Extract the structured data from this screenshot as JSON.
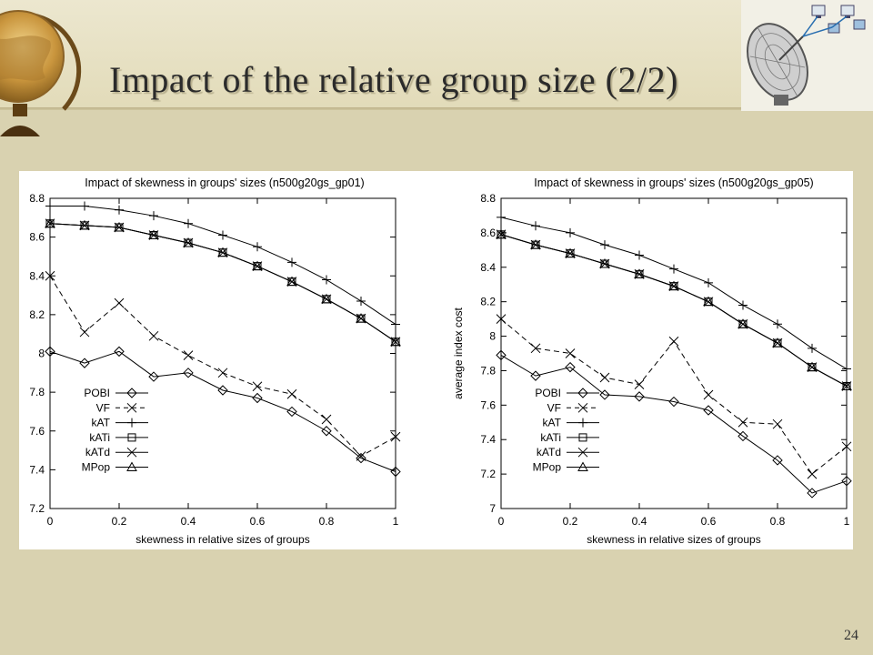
{
  "slide": {
    "title": "Impact of the relative group size (2/2)",
    "page_number": "24",
    "colors": {
      "background": "#d9d2b0",
      "header": "#e6e0c4",
      "chart_background": "#ffffff",
      "ink": "#000000"
    },
    "icons": [
      "globe-icon",
      "satellite-dish-icon",
      "computer-icon"
    ]
  },
  "chart_data": [
    {
      "type": "line",
      "title": "Impact of skewness in groups' sizes (n500g20gs_gp01)",
      "xlabel": "skewness in relative sizes of groups",
      "ylabel": "",
      "x": [
        0,
        0.1,
        0.2,
        0.3,
        0.4,
        0.5,
        0.6,
        0.7,
        0.8,
        0.9,
        1
      ],
      "xlim": [
        0,
        1
      ],
      "ylim": [
        7.2,
        8.8
      ],
      "xticks": [
        "0",
        "0.2",
        "0.4",
        "0.6",
        "0.8",
        "1"
      ],
      "xtick_values": [
        0,
        0.2,
        0.4,
        0.6,
        0.8,
        1
      ],
      "yticks": [
        "7.2",
        "7.4",
        "7.6",
        "7.8",
        "8",
        "8.2",
        "8.4",
        "8.6",
        "8.8"
      ],
      "ytick_values": [
        7.2,
        7.4,
        7.6,
        7.8,
        8,
        8.2,
        8.4,
        8.6,
        8.8
      ],
      "grid": false,
      "legend_position": "bottom-left",
      "series": [
        {
          "name": "POBI",
          "marker": "diamond",
          "dash": "solid",
          "values": [
            8.01,
            7.95,
            8.01,
            7.88,
            7.9,
            7.81,
            7.77,
            7.7,
            7.6,
            7.46,
            7.39
          ]
        },
        {
          "name": "VF",
          "marker": "x",
          "dash": "dashed",
          "values": [
            8.4,
            8.11,
            8.26,
            8.09,
            7.99,
            7.9,
            7.83,
            7.79,
            7.66,
            7.47,
            7.57
          ]
        },
        {
          "name": "kAT",
          "marker": "plus",
          "dash": "solid",
          "values": [
            8.76,
            8.76,
            8.74,
            8.71,
            8.67,
            8.61,
            8.55,
            8.47,
            8.38,
            8.27,
            8.15
          ]
        },
        {
          "name": "kATi",
          "marker": "square",
          "dash": "solid",
          "values": [
            8.67,
            8.66,
            8.65,
            8.61,
            8.57,
            8.52,
            8.45,
            8.37,
            8.28,
            8.18,
            8.06
          ]
        },
        {
          "name": "kATd",
          "marker": "x",
          "dash": "solid",
          "values": [
            8.67,
            8.66,
            8.65,
            8.61,
            8.57,
            8.52,
            8.45,
            8.37,
            8.28,
            8.18,
            8.06
          ]
        },
        {
          "name": "MPop",
          "marker": "triangle",
          "dash": "solid",
          "values": [
            8.67,
            8.66,
            8.65,
            8.61,
            8.57,
            8.52,
            8.45,
            8.37,
            8.28,
            8.18,
            8.06
          ]
        }
      ]
    },
    {
      "type": "line",
      "title": "Impact of skewness in groups' sizes (n500g20gs_gp05)",
      "xlabel": "skewness in relative sizes of groups",
      "ylabel": "average index cost",
      "x": [
        0,
        0.1,
        0.2,
        0.3,
        0.4,
        0.5,
        0.6,
        0.7,
        0.8,
        0.9,
        1
      ],
      "xlim": [
        0,
        1
      ],
      "ylim": [
        7,
        8.8
      ],
      "xticks": [
        "0",
        "0.2",
        "0.4",
        "0.6",
        "0.8",
        "1"
      ],
      "xtick_values": [
        0,
        0.2,
        0.4,
        0.6,
        0.8,
        1
      ],
      "yticks": [
        "7",
        "7.2",
        "7.4",
        "7.6",
        "7.8",
        "8",
        "8.2",
        "8.4",
        "8.6",
        "8.8"
      ],
      "ytick_values": [
        7,
        7.2,
        7.4,
        7.6,
        7.8,
        8,
        8.2,
        8.4,
        8.6,
        8.8
      ],
      "grid": false,
      "legend_position": "bottom-left",
      "series": [
        {
          "name": "POBI",
          "marker": "diamond",
          "dash": "solid",
          "values": [
            7.89,
            7.77,
            7.82,
            7.66,
            7.65,
            7.62,
            7.57,
            7.42,
            7.28,
            7.09,
            7.16
          ]
        },
        {
          "name": "VF",
          "marker": "x",
          "dash": "dashed",
          "values": [
            8.1,
            7.93,
            7.9,
            7.76,
            7.72,
            7.97,
            7.66,
            7.5,
            7.49,
            7.2,
            7.36
          ]
        },
        {
          "name": "kAT",
          "marker": "plus",
          "dash": "solid",
          "values": [
            8.69,
            8.64,
            8.6,
            8.53,
            8.47,
            8.39,
            8.31,
            8.18,
            8.07,
            7.93,
            7.81
          ]
        },
        {
          "name": "kATi",
          "marker": "square",
          "dash": "solid",
          "values": [
            8.59,
            8.53,
            8.48,
            8.42,
            8.36,
            8.29,
            8.2,
            8.07,
            7.96,
            7.82,
            7.71
          ]
        },
        {
          "name": "kATd",
          "marker": "x",
          "dash": "solid",
          "values": [
            8.59,
            8.53,
            8.48,
            8.42,
            8.36,
            8.29,
            8.2,
            8.07,
            7.96,
            7.82,
            7.71
          ]
        },
        {
          "name": "MPop",
          "marker": "triangle",
          "dash": "solid",
          "values": [
            8.59,
            8.53,
            8.48,
            8.42,
            8.36,
            8.29,
            8.2,
            8.07,
            7.96,
            7.82,
            7.71
          ]
        }
      ]
    }
  ]
}
